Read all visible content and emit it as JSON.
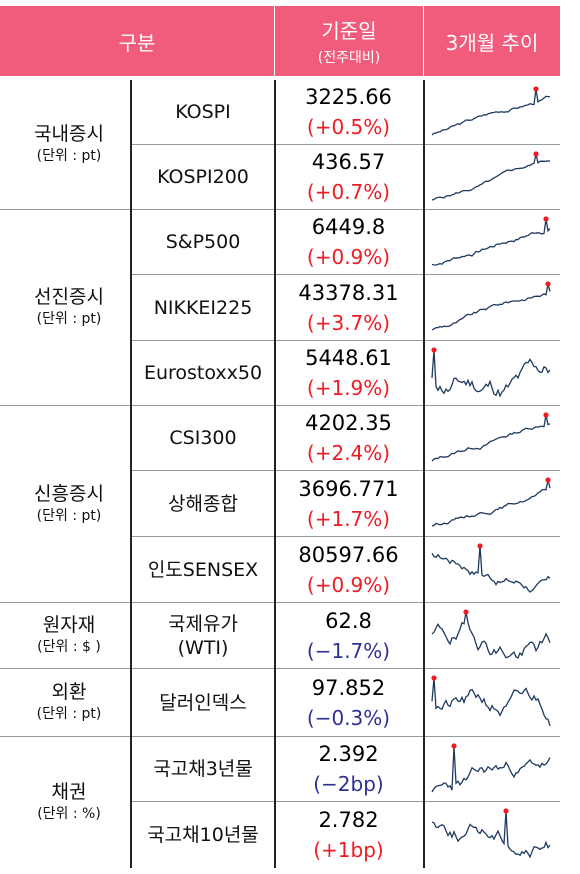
{
  "header": {
    "category": "구분",
    "date": "기준일",
    "date_sub": "(전주대비)",
    "trend": "3개월 추이"
  },
  "colors": {
    "header_bg": "#f15b7c",
    "up": "#ee1c25",
    "down": "#2e3192",
    "spark_line": "#1f3a5f",
    "spark_marker": "#ee1c25"
  },
  "groups": [
    {
      "name": "국내증시",
      "unit": "(단위 : pt)"
    },
    {
      "name": "선진증시",
      "unit": "(단위 : pt)"
    },
    {
      "name": "신흥증시",
      "unit": "(단위 : pt)"
    },
    {
      "name": "원자재",
      "unit": "(단위 : $ )"
    },
    {
      "name": "외환",
      "unit": "(단위 : pt)"
    },
    {
      "name": "채권",
      "unit": "(단위 : %)"
    }
  ],
  "rows": [
    {
      "name": "KOSPI",
      "name2": "",
      "value": "3225.66",
      "change": "(+0.5%)",
      "dir": "up"
    },
    {
      "name": "KOSPI200",
      "name2": "",
      "value": "436.57",
      "change": "(+0.7%)",
      "dir": "up"
    },
    {
      "name": "S&P500",
      "name2": "",
      "value": "6449.8",
      "change": "(+0.9%)",
      "dir": "up"
    },
    {
      "name": "NIKKEI225",
      "name2": "",
      "value": "43378.31",
      "change": "(+3.7%)",
      "dir": "up"
    },
    {
      "name": "Eurostoxx50",
      "name2": "",
      "value": "5448.61",
      "change": "(+1.9%)",
      "dir": "up"
    },
    {
      "name": "CSI300",
      "name2": "",
      "value": "4202.35",
      "change": "(+2.4%)",
      "dir": "up"
    },
    {
      "name": "상해종합",
      "name2": "",
      "value": "3696.771",
      "change": "(+1.7%)",
      "dir": "up"
    },
    {
      "name": "인도SENSEX",
      "name2": "",
      "value": "80597.66",
      "change": "(+0.9%)",
      "dir": "up"
    },
    {
      "name": "국제유가",
      "name2": "(WTI)",
      "value": "62.8",
      "change": "(−1.7%)",
      "dir": "down"
    },
    {
      "name": "달러인덱스",
      "name2": "",
      "value": "97.852",
      "change": "(−0.3%)",
      "dir": "down"
    },
    {
      "name": "국고채3년물",
      "name2": "",
      "value": "2.392",
      "change": "(−2bp)",
      "dir": "down"
    },
    {
      "name": "국고채10년물",
      "name2": "",
      "value": "2.782",
      "change": "(+1bp)",
      "dir": "up"
    }
  ]
}
